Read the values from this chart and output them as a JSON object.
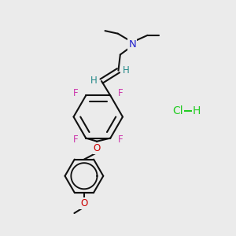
{
  "bg": "#ebebeb",
  "bond_color": "#111111",
  "N_color": "#2222cc",
  "F_color": "#cc33aa",
  "O_color": "#cc0000",
  "H_color": "#228888",
  "Cl_color": "#22cc22",
  "lw": 1.5,
  "figsize": [
    3.0,
    3.0
  ],
  "dpi": 100,
  "xlim": [
    0,
    10
  ],
  "ylim": [
    0,
    10
  ]
}
